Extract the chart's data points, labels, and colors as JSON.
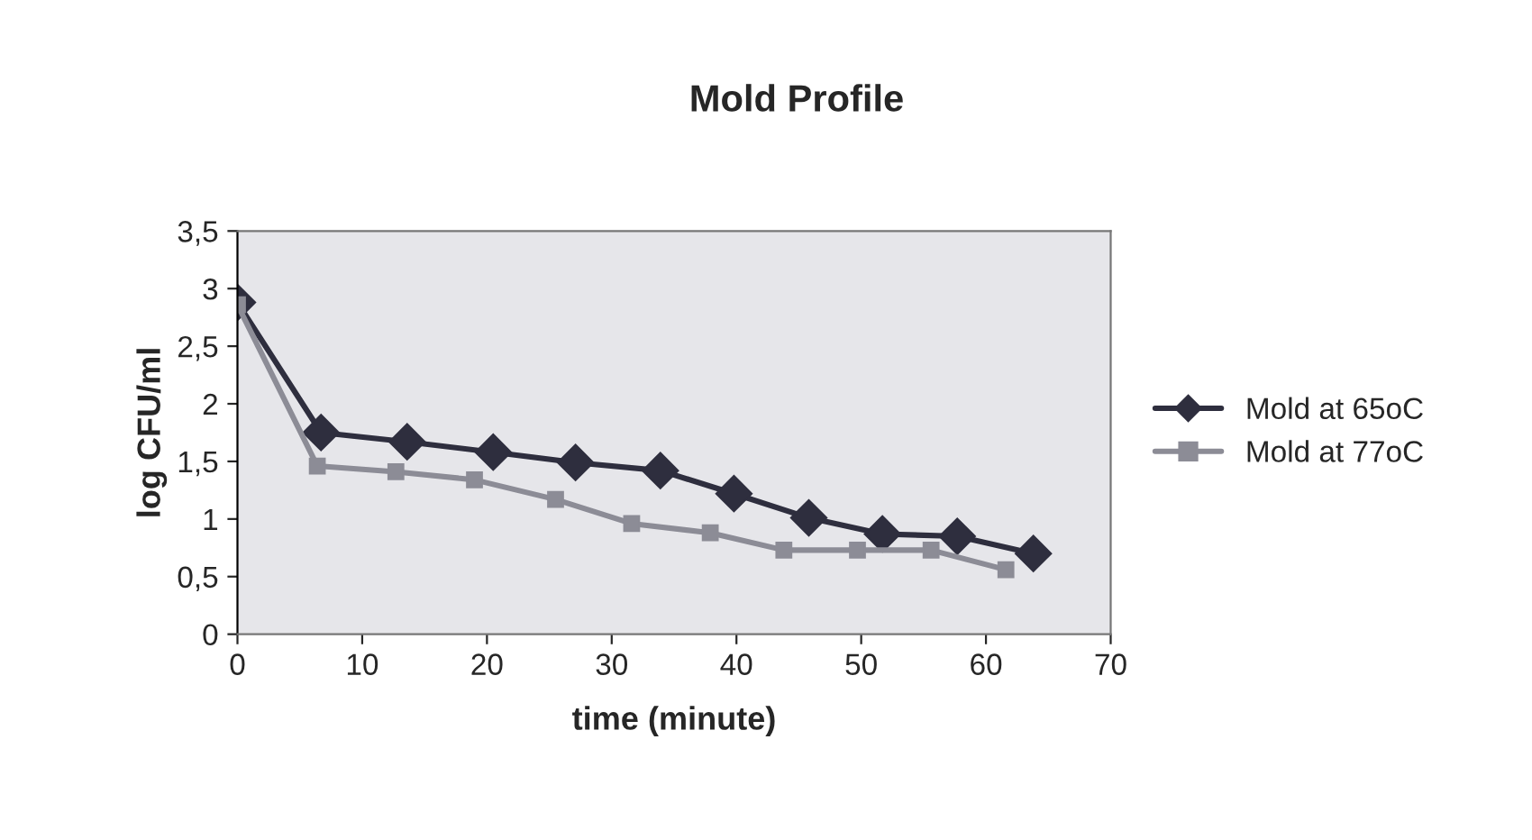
{
  "chart_data": {
    "type": "line",
    "title": "Mold Profile",
    "xlabel": "time (minute)",
    "ylabel": "log CFU/ml",
    "series": [
      {
        "name": "Mold at 65oC",
        "color": "#2e2e3e",
        "marker": "diamond",
        "x": [
          0,
          6.7,
          13.6,
          20.5,
          27.1,
          33.9,
          39.8,
          45.8,
          51.7,
          57.7,
          63.8
        ],
        "values": [
          2.88,
          1.75,
          1.67,
          1.58,
          1.49,
          1.42,
          1.22,
          1.01,
          0.87,
          0.85,
          0.7
        ]
      },
      {
        "name": "Mold at 77oC",
        "color": "#8c8c96",
        "marker": "square",
        "x": [
          0,
          6.4,
          12.7,
          19,
          25.5,
          31.6,
          37.9,
          43.8,
          49.7,
          55.6,
          61.6
        ],
        "values": [
          2.86,
          1.46,
          1.41,
          1.34,
          1.17,
          0.96,
          0.88,
          0.73,
          0.73,
          0.73,
          0.56
        ]
      }
    ],
    "xlim": [
      0,
      70
    ],
    "xticks": [
      0,
      10,
      20,
      30,
      40,
      50,
      60,
      70
    ],
    "ylim": [
      0,
      3.5
    ],
    "yticks": [
      0,
      {
        "value": 0.5,
        "label": "0,5"
      },
      1,
      {
        "value": 1.5,
        "label": "1,5"
      },
      2,
      {
        "value": 2.5,
        "label": "2,5"
      },
      3,
      {
        "value": 3.5,
        "label": "3,5"
      }
    ],
    "grid": false,
    "legend": "right",
    "line_style": "solid"
  }
}
